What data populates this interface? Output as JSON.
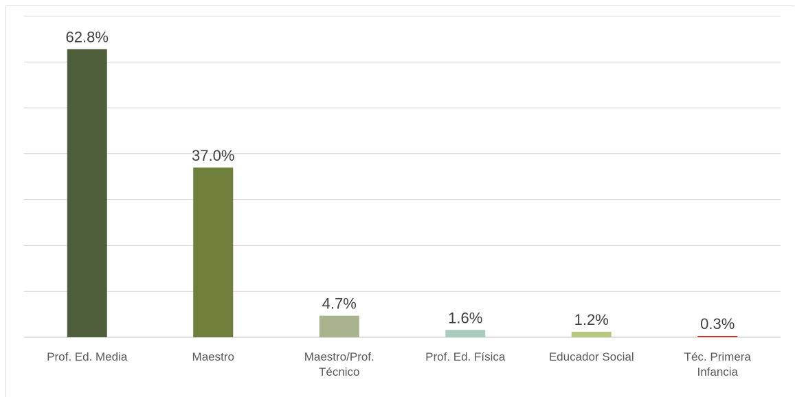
{
  "chart_data": {
    "type": "bar",
    "categories": [
      [
        "Prof. Ed. Media"
      ],
      [
        "Maestro"
      ],
      [
        "Maestro/Prof.",
        "Técnico"
      ],
      [
        "Prof. Ed. Física"
      ],
      [
        "Educador Social"
      ],
      [
        "Téc. Primera",
        "Infancia"
      ]
    ],
    "values": [
      62.8,
      37.0,
      4.7,
      1.6,
      1.2,
      0.3
    ],
    "value_labels": [
      "62.8%",
      "37.0%",
      "4.7%",
      "1.6%",
      "1.2%",
      "0.3%"
    ],
    "colors": [
      "#4f5f3b",
      "#6d7f3a",
      "#a8b48e",
      "#a9cbbd",
      "#b5c97f",
      "#c0392b"
    ],
    "ylim": [
      0,
      70
    ],
    "grid": true,
    "gridline_color": "#d9d9d9",
    "axis_color": "#bfbfbf"
  }
}
